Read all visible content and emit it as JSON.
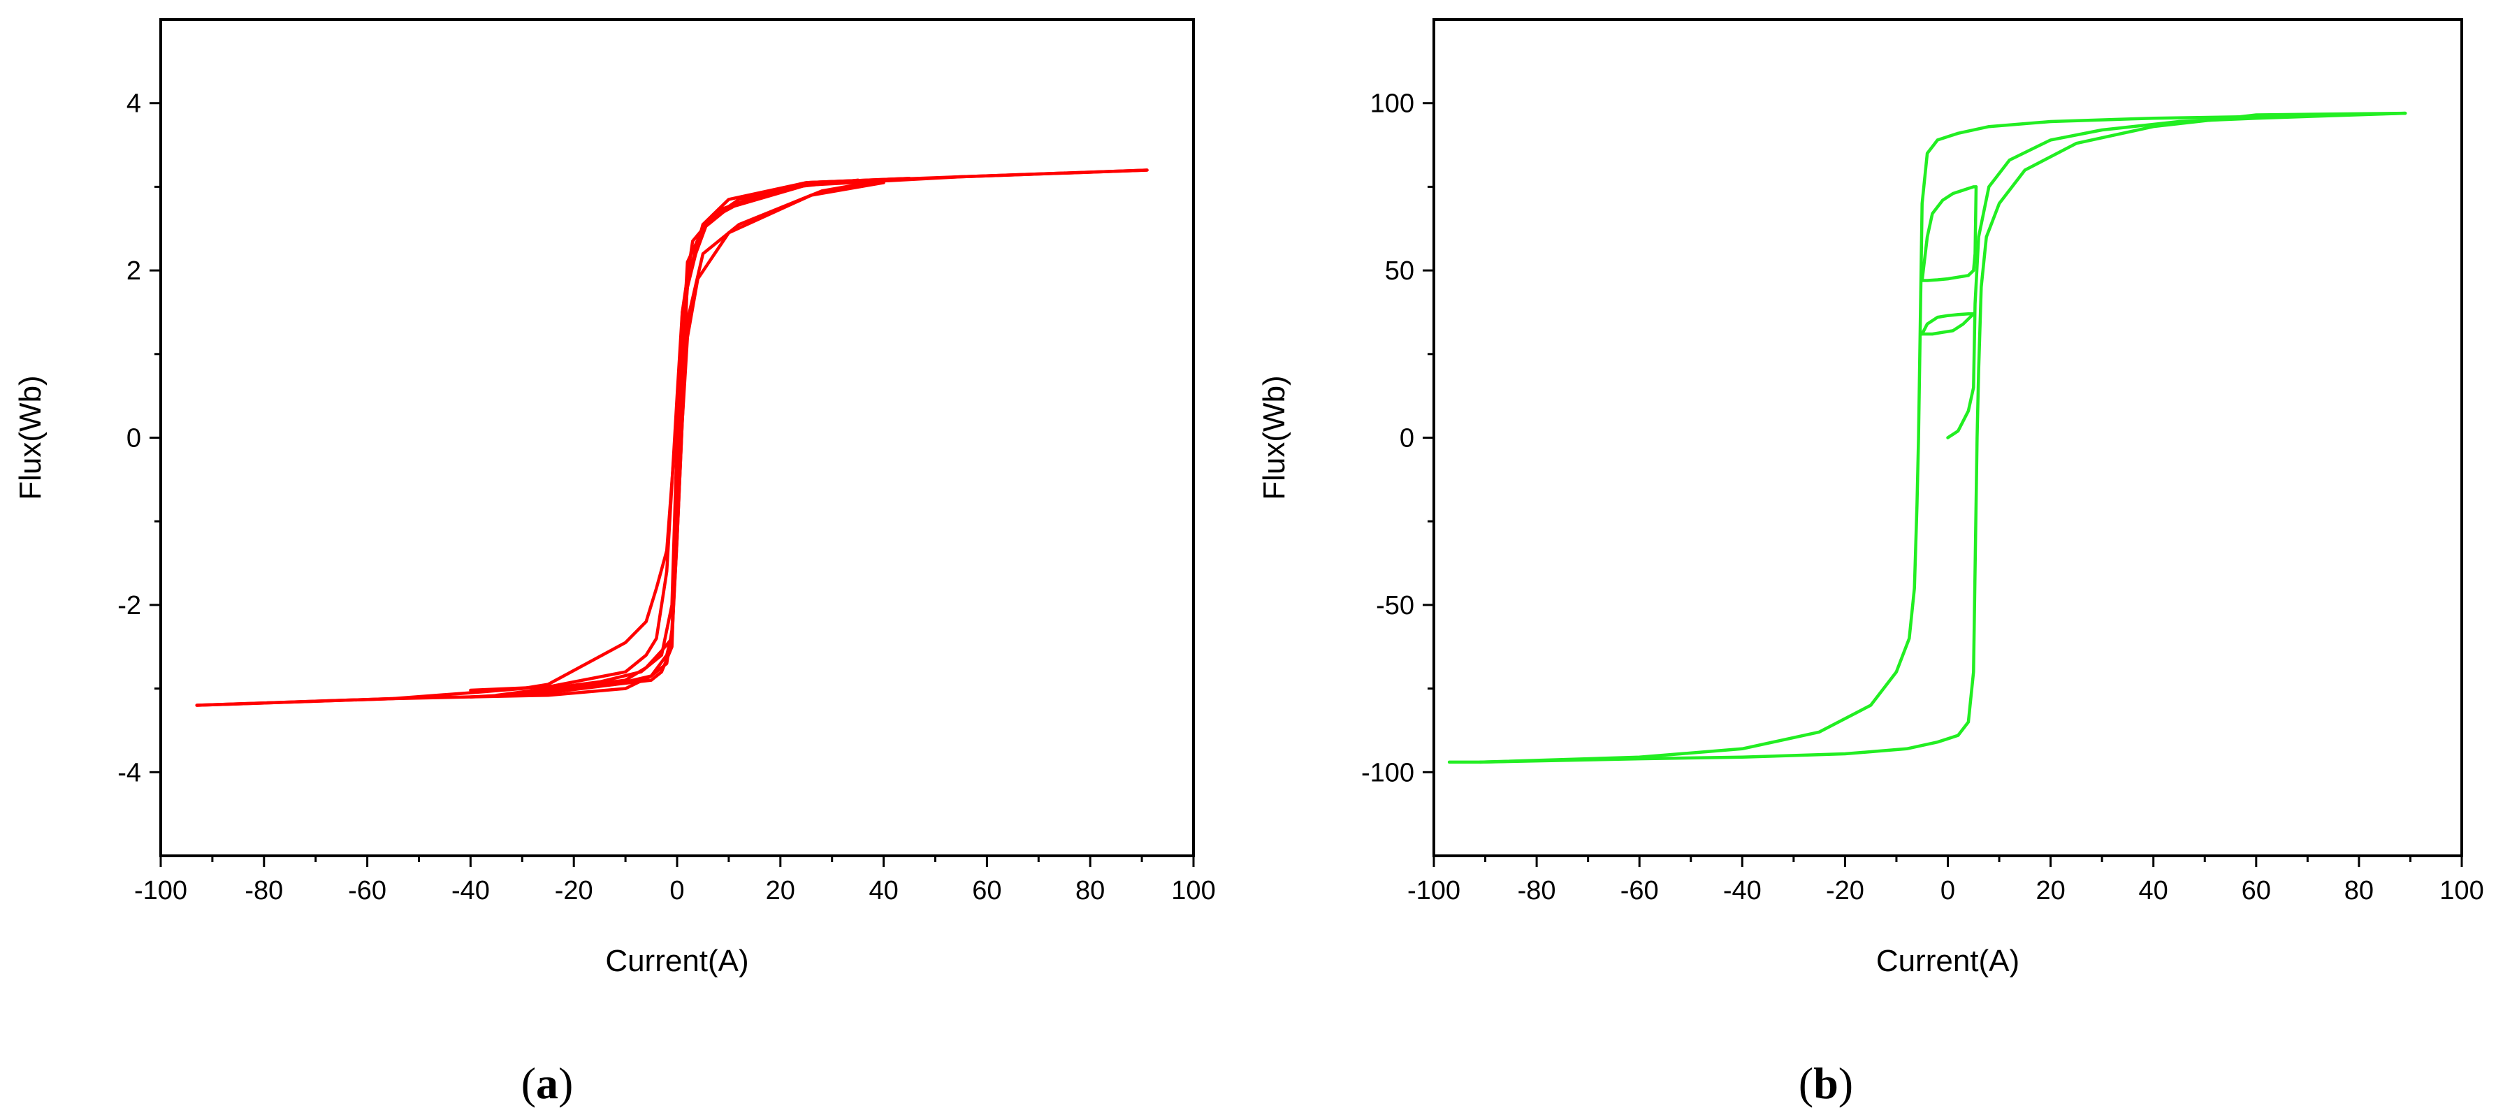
{
  "chart_data": [
    {
      "type": "line",
      "panel_label": "a",
      "xlabel": "Current(A)",
      "ylabel": "Flux(Wb)",
      "xlim": [
        -100,
        100
      ],
      "ylim": [
        -5,
        5
      ],
      "x_ticks": [
        -100,
        -80,
        -60,
        -40,
        -20,
        0,
        20,
        40,
        60,
        80,
        100
      ],
      "y_ticks": [
        -4,
        -2,
        0,
        2,
        4
      ],
      "color": "#ff0000",
      "grid": false,
      "series": [
        {
          "x": [
            -93,
            -55,
            -40,
            -30,
            -25,
            -10,
            -6,
            -4,
            -2,
            0,
            2,
            5,
            10,
            25,
            55,
            91
          ],
          "y": [
            -3.2,
            -3.12,
            -3.05,
            -3.0,
            -2.95,
            -2.45,
            -2.2,
            -1.8,
            -1.35,
            0.3,
            1.8,
            2.55,
            2.85,
            3.05,
            3.12,
            3.2
          ]
        },
        {
          "x": [
            91,
            55,
            25,
            10,
            5,
            2,
            1,
            0,
            -1,
            -2,
            -5,
            -10,
            -25,
            -55,
            -93
          ],
          "y": [
            3.2,
            3.12,
            3.02,
            2.75,
            2.5,
            2.1,
            1.0,
            -1.0,
            -2.3,
            -2.7,
            -2.85,
            -3.0,
            -3.08,
            -3.12,
            -3.2
          ]
        },
        {
          "x": [
            -40,
            -25,
            -10,
            -6,
            -4,
            -2,
            0,
            1,
            3,
            6,
            12,
            25,
            45
          ],
          "y": [
            -3.02,
            -2.98,
            -2.8,
            -2.6,
            -2.4,
            -1.6,
            0.5,
            1.5,
            2.1,
            2.6,
            2.8,
            3.05,
            3.1
          ]
        },
        {
          "x": [
            45,
            25,
            12,
            5,
            2,
            1,
            0,
            -1,
            -3,
            -5,
            -12,
            -25,
            -40
          ],
          "y": [
            3.1,
            3.05,
            2.85,
            2.55,
            1.9,
            0.4,
            -0.8,
            -2.5,
            -2.8,
            -2.9,
            -2.95,
            -3.05,
            -3.1
          ]
        },
        {
          "x": [
            -30,
            -10,
            -6,
            -3,
            -1,
            0,
            1,
            2,
            5,
            12,
            28,
            40
          ],
          "y": [
            -3.05,
            -2.9,
            -2.75,
            -2.55,
            -2.4,
            -1.2,
            0.2,
            1.4,
            2.2,
            2.55,
            2.95,
            3.08
          ]
        },
        {
          "x": [
            40,
            26,
            10,
            4,
            2,
            1,
            0,
            -1,
            -2,
            -5,
            -12,
            -30
          ],
          "y": [
            3.05,
            2.9,
            2.45,
            1.9,
            1.2,
            0.2,
            -1.2,
            -2.35,
            -2.6,
            -2.85,
            -2.95,
            -3.05
          ]
        },
        {
          "x": [
            -35,
            -15,
            -7,
            -3,
            -1,
            0,
            1,
            3,
            8,
            20,
            35
          ],
          "y": [
            -3.08,
            -2.92,
            -2.8,
            -2.6,
            -2.0,
            0.0,
            1.5,
            2.35,
            2.72,
            2.98,
            3.08
          ]
        }
      ]
    },
    {
      "type": "line",
      "panel_label": "b",
      "xlabel": "Current(A)",
      "ylabel": "Flux(Wb)",
      "xlim": [
        -100,
        100
      ],
      "ylim": [
        -125,
        125
      ],
      "x_ticks": [
        -100,
        -80,
        -60,
        -40,
        -20,
        0,
        20,
        40,
        60,
        80,
        100
      ],
      "y_ticks": [
        -100,
        -50,
        0,
        50,
        100
      ],
      "color": "#22ee22",
      "grid": false,
      "series": [
        {
          "x": [
            -97,
            -91,
            -60,
            -40,
            -25,
            -15,
            -10,
            -7.5,
            -6.5,
            -6,
            -5.7,
            -5.4,
            -5,
            -4,
            -2,
            2,
            8,
            20,
            40,
            60,
            89
          ],
          "y": [
            -97,
            -97,
            -95.5,
            -93,
            -88,
            -80,
            -70,
            -60,
            -45,
            -20,
            0,
            30,
            70,
            85,
            89,
            91,
            93,
            94.5,
            95.5,
            96,
            97
          ]
        },
        {
          "x": [
            89,
            60,
            40,
            25,
            15,
            10,
            7.5,
            6.5,
            6,
            5.7,
            5.4,
            5,
            4,
            2,
            -2,
            -8,
            -20,
            -40,
            -60,
            -91
          ],
          "y": [
            97,
            96.5,
            93,
            88,
            80,
            70,
            60,
            45,
            20,
            0,
            -30,
            -70,
            -85,
            -89,
            -91,
            -93,
            -94.5,
            -95.5,
            -96,
            -97
          ]
        },
        {
          "x": [
            0,
            2,
            4,
            5,
            5.3,
            6,
            8,
            12,
            20,
            30,
            45,
            60,
            89
          ],
          "y": [
            0,
            2,
            8,
            15,
            40,
            60,
            75,
            83,
            89,
            92,
            94.5,
            95.5,
            97
          ]
        },
        {
          "x": [
            -5,
            -4,
            -3,
            -1,
            1,
            3,
            4,
            5,
            5.5
          ],
          "y": [
            47,
            60,
            67,
            71,
            73,
            74,
            74.5,
            75,
            75
          ]
        },
        {
          "x": [
            5.5,
            5.3,
            5,
            4,
            2,
            0,
            -2,
            -4,
            -5
          ],
          "y": [
            75,
            55,
            50,
            48.5,
            48,
            47.5,
            47.2,
            47,
            47
          ]
        },
        {
          "x": [
            -5,
            -4,
            -2,
            0,
            2,
            4,
            5
          ],
          "y": [
            31,
            34,
            36,
            36.5,
            36.8,
            37,
            37
          ]
        },
        {
          "x": [
            5,
            3,
            1,
            -1,
            -3,
            -5
          ],
          "y": [
            37,
            34,
            32,
            31.5,
            31,
            31
          ]
        }
      ]
    }
  ]
}
